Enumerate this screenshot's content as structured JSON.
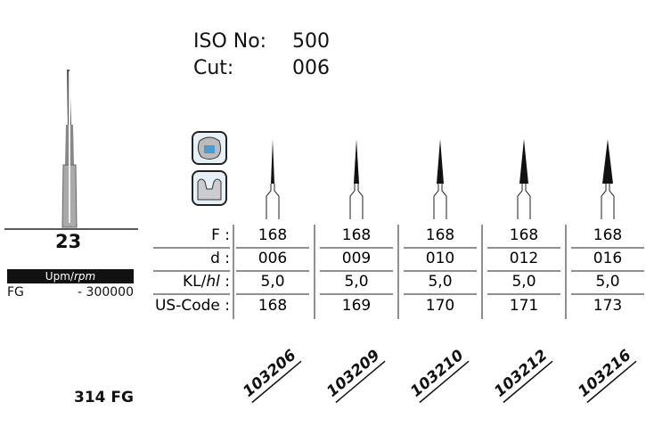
{
  "header": {
    "iso_label": "ISO No:",
    "iso_value": "500",
    "cut_label": "Cut:",
    "cut_value": "006"
  },
  "product": {
    "number": "23",
    "speed_unit": [
      "Upm",
      "/",
      "rpm"
    ],
    "speed_prefix": "FG",
    "speed_value": "- 300000",
    "name": "314 FG"
  },
  "table": {
    "row_labels": [
      [
        "F :"
      ],
      [
        "d :"
      ],
      [
        "KL/",
        "hl",
        " :"
      ],
      [
        "US-Code :"
      ]
    ],
    "rows": [
      [
        "168",
        "168",
        "168",
        "168",
        "168"
      ],
      [
        "006",
        "009",
        "010",
        "012",
        "016"
      ],
      [
        "5,0",
        "5,0",
        "5,0",
        "5,0",
        "5,0"
      ],
      [
        "168",
        "169",
        "170",
        "171",
        "173"
      ]
    ],
    "codes": [
      "103206",
      "103209",
      "103210",
      "103212",
      "103216"
    ]
  }
}
